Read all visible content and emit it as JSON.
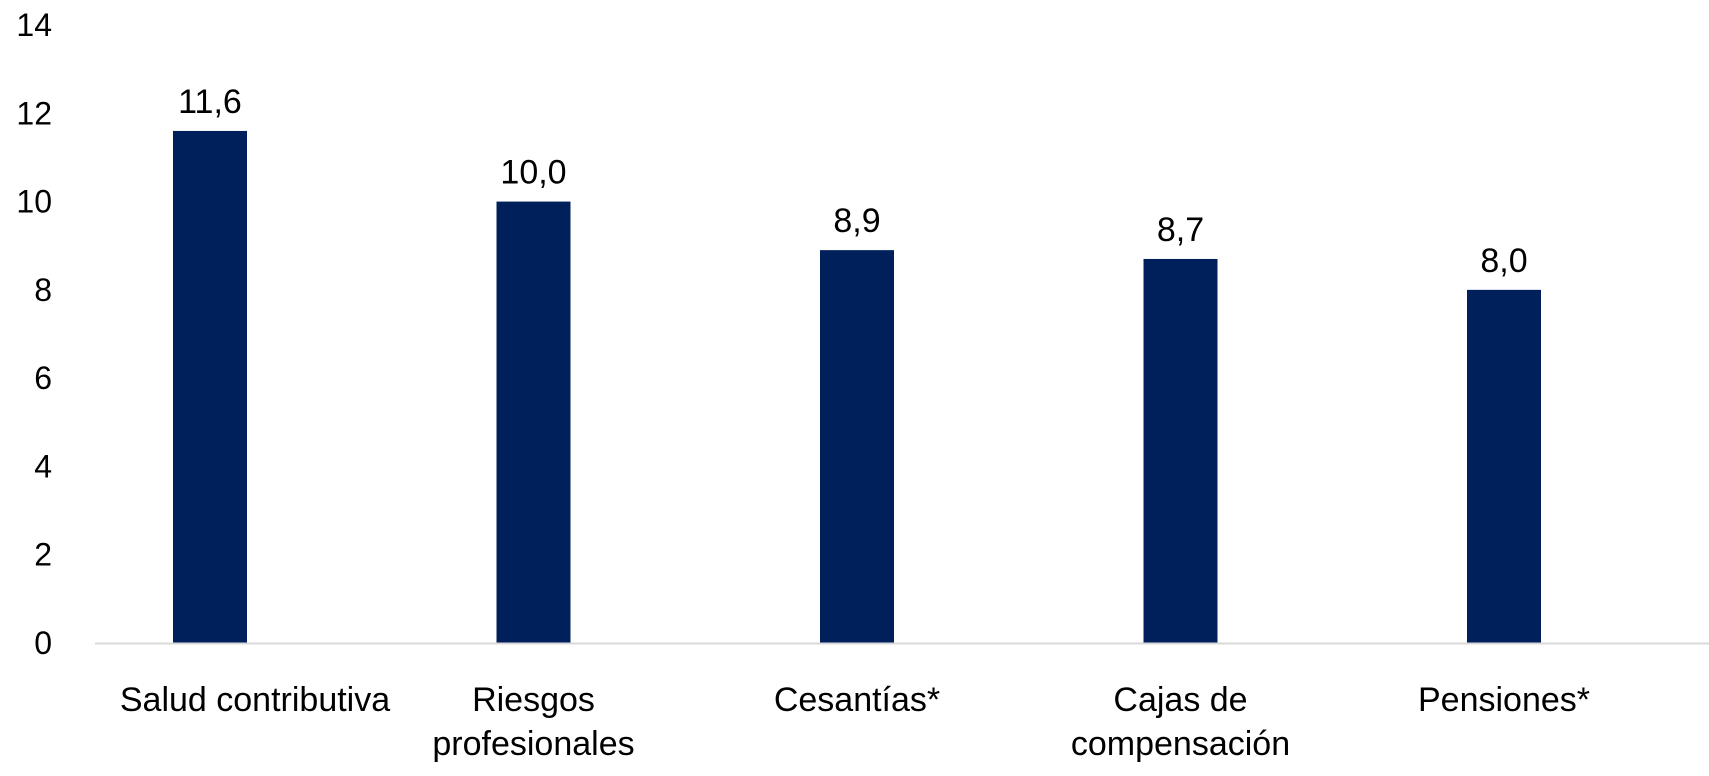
{
  "chart_data": {
    "type": "bar",
    "title": "",
    "xlabel": "",
    "ylabel": "",
    "categories": [
      [
        "Salud contributiva"
      ],
      [
        "Riesgos",
        "profesionales"
      ],
      [
        "Cesantías*"
      ],
      [
        "Cajas de",
        "compensación"
      ],
      [
        "Pensiones*"
      ]
    ],
    "values": [
      11.6,
      10.0,
      8.9,
      8.7,
      8.0
    ],
    "data_labels": [
      "11,6",
      "10,0",
      "8,9",
      "8,7",
      "8,0"
    ],
    "ylim": [
      0,
      14
    ],
    "yticks": [
      "0",
      "2",
      "4",
      "6",
      "8",
      "10",
      "12",
      "14"
    ],
    "grid": false,
    "legend": "none",
    "colors": {
      "bar": "#00205B",
      "axis": "#D9D9D9"
    }
  }
}
